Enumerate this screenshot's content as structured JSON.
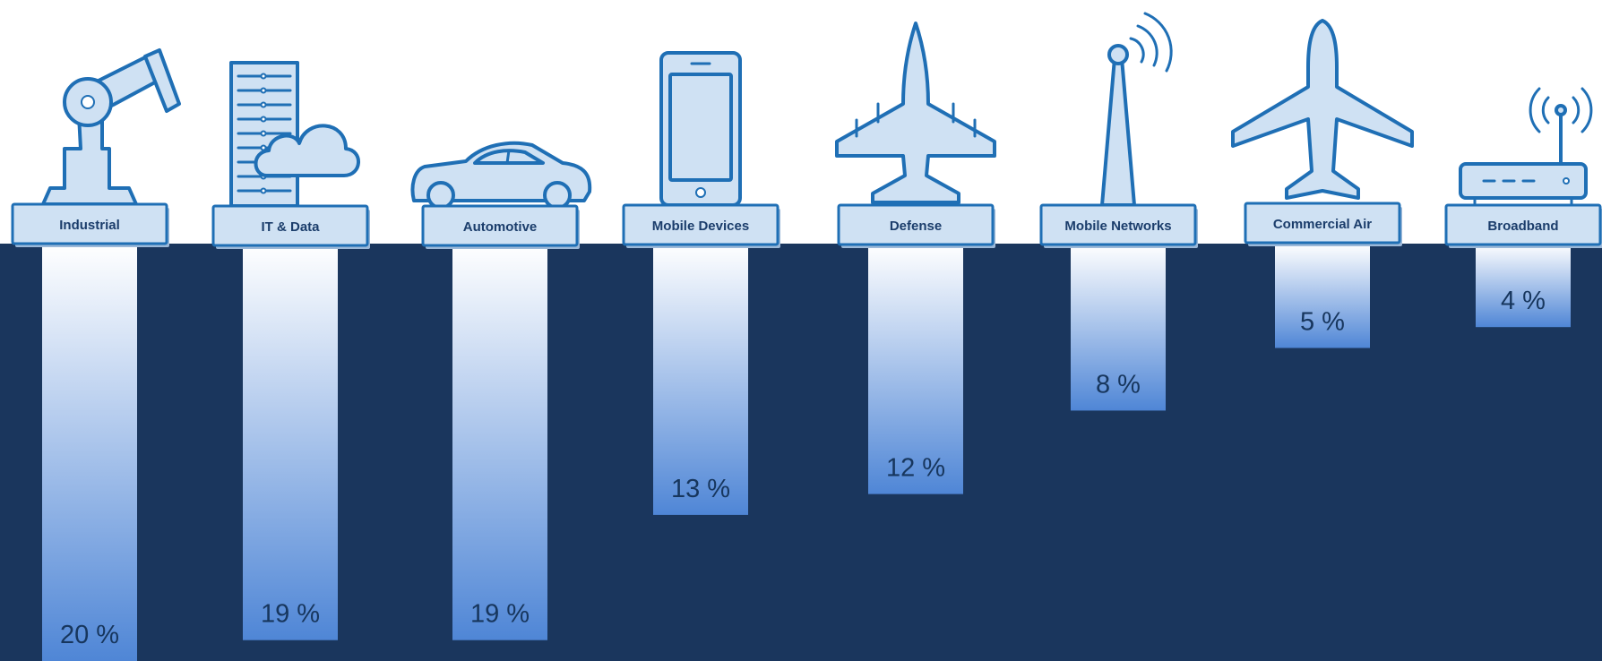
{
  "colors": {
    "background_band": "#1a365d",
    "bar_top": "#ffffff",
    "bar_bottom": "#4f86d6",
    "icon_fill": "#cfe1f3",
    "icon_stroke": "#1f6fb5",
    "label_text": "#1b3d6b",
    "value_text": "#17365d"
  },
  "chart_data": {
    "type": "bar",
    "orientation": "downward",
    "title": "",
    "xlabel": "",
    "ylabel": "",
    "ylim": [
      0,
      20
    ],
    "grid": false,
    "categories": [
      "Industrial",
      "IT & Data",
      "Automotive",
      "Mobile Devices",
      "Defense",
      "Mobile Networks",
      "Commercial Air",
      "Broadband"
    ],
    "values": [
      20,
      19,
      19,
      13,
      12,
      8,
      5,
      4
    ],
    "data_labels": [
      "20 %",
      "19 %",
      "19 %",
      "13 %",
      "12 %",
      "8 %",
      "5 %",
      "4 %"
    ],
    "icons": [
      "robot-arm-icon",
      "server-cloud-icon",
      "car-icon",
      "smartphone-icon",
      "fighter-jet-icon",
      "cell-tower-icon",
      "airplane-icon",
      "router-icon"
    ]
  }
}
